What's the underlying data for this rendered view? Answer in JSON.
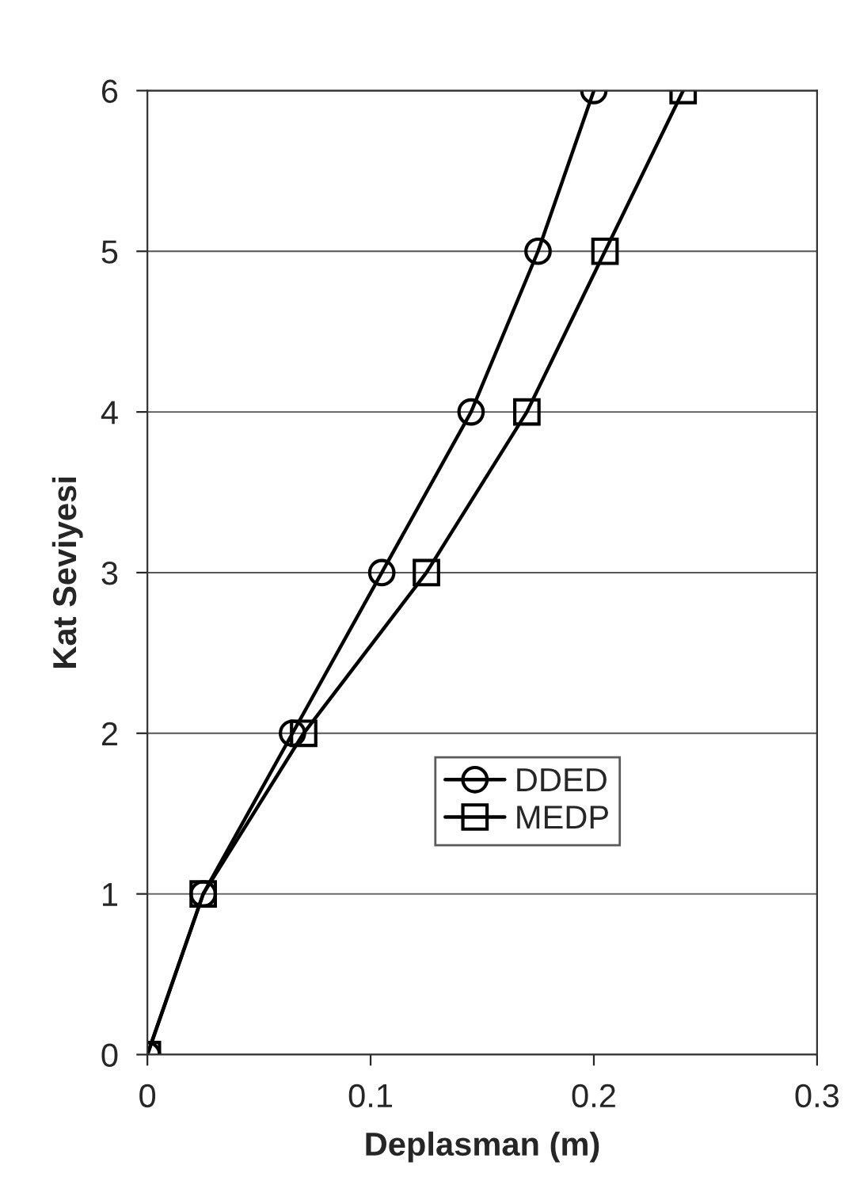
{
  "chart_data": {
    "type": "line",
    "xlabel": "Deplasman (m)",
    "ylabel": "Kat Seviyesi",
    "xlim": [
      0,
      0.3
    ],
    "xticks": [
      0,
      0.1,
      0.2,
      0.3
    ],
    "ylim": [
      0,
      6
    ],
    "yticks": [
      0,
      1,
      2,
      3,
      4,
      5,
      6
    ],
    "grid": "y",
    "legend": "lower right",
    "series": [
      {
        "name": "DDED",
        "color": "#000000",
        "marker": "circle",
        "x": [
          0,
          0.025,
          0.065,
          0.105,
          0.145,
          0.175,
          0.2
        ],
        "values": [
          0,
          1,
          2,
          3,
          4,
          5,
          6
        ]
      },
      {
        "name": "MEDP",
        "color": "#000000",
        "marker": "square",
        "x": [
          0,
          0.025,
          0.07,
          0.125,
          0.17,
          0.205,
          0.24
        ],
        "values": [
          0,
          1,
          2,
          3,
          4,
          5,
          6
        ]
      }
    ]
  }
}
